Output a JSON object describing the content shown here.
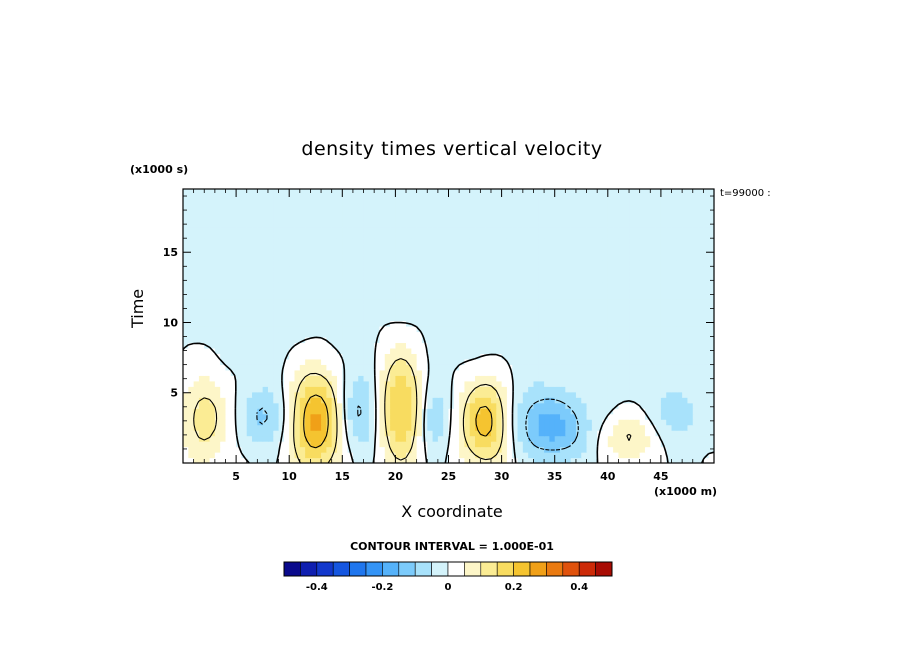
{
  "chart_data": {
    "type": "heatmap",
    "title": "density times vertical velocity",
    "xlabel": "X coordinate",
    "ylabel": "Time",
    "x_units": "(x1000 m)",
    "y_units": "(x1000 s)",
    "time_note": "t=99000 :",
    "xlim": [
      0,
      50
    ],
    "ylim": [
      0,
      19.5
    ],
    "x_ticks": [
      5,
      10,
      15,
      20,
      25,
      30,
      35,
      40,
      45
    ],
    "y_ticks": [
      5,
      10,
      15
    ],
    "contour_interval_label": "CONTOUR INTERVAL = 1.000E-01",
    "colorbar": {
      "range": [
        -0.5,
        0.5
      ],
      "tick_values": [
        -0.4,
        -0.2,
        0,
        0.2,
        0.4
      ],
      "tick_labels": [
        "-0.4",
        "-0.2",
        "0",
        "0.2",
        "0.4"
      ]
    },
    "blobs": [
      {
        "x": 2.0,
        "y": 3.2,
        "sx": 1.6,
        "sy": 2.2,
        "v": 0.13
      },
      {
        "x": 7.7,
        "y": 3.3,
        "sx": 1.5,
        "sy": 1.5,
        "v": -0.11
      },
      {
        "x": 12.5,
        "y": 3.0,
        "sx": 1.7,
        "sy": 2.6,
        "v": 0.27
      },
      {
        "x": 16.8,
        "y": 3.6,
        "sx": 1.4,
        "sy": 2.0,
        "v": -0.12
      },
      {
        "x": 20.5,
        "y": 4.0,
        "sx": 1.6,
        "sy": 3.0,
        "v": 0.22
      },
      {
        "x": 23.5,
        "y": 3.2,
        "sx": 1.0,
        "sy": 1.8,
        "v": -0.11
      },
      {
        "x": 28.5,
        "y": 3.0,
        "sx": 1.7,
        "sy": 2.2,
        "v": 0.24
      },
      {
        "x": 32.5,
        "y": 3.0,
        "sx": 1.8,
        "sy": 1.8,
        "v": -0.08
      },
      {
        "x": 35.5,
        "y": 2.5,
        "sx": 2.0,
        "sy": 1.6,
        "v": -0.14
      },
      {
        "x": 42.0,
        "y": 1.8,
        "sx": 1.8,
        "sy": 1.2,
        "v": 0.11
      },
      {
        "x": 46.5,
        "y": 3.5,
        "sx": 1.8,
        "sy": 1.5,
        "v": -0.07
      },
      {
        "x": 24.0,
        "y": 12.0,
        "sx": 10.0,
        "sy": 6.0,
        "v": -0.025
      },
      {
        "x": 41.0,
        "y": 13.0,
        "sx": 8.0,
        "sy": 6.0,
        "v": -0.025
      },
      {
        "x": 8.0,
        "y": 14.0,
        "sx": 6.0,
        "sy": 5.0,
        "v": -0.02
      }
    ]
  }
}
